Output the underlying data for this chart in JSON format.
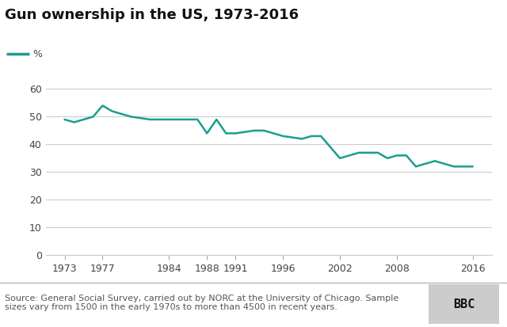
{
  "title": "Gun ownership in the US, 1973-2016",
  "legend_label": "%",
  "line_color": "#1a9e8f",
  "years": [
    1973,
    1974,
    1976,
    1977,
    1978,
    1980,
    1982,
    1984,
    1985,
    1987,
    1988,
    1989,
    1990,
    1991,
    1993,
    1994,
    1996,
    1998,
    1999,
    2000,
    2002,
    2004,
    2006,
    2007,
    2008,
    2009,
    2010,
    2012,
    2014,
    2016
  ],
  "values": [
    49,
    48,
    50,
    54,
    52,
    50,
    49,
    49,
    49,
    49,
    44,
    49,
    44,
    44,
    45,
    45,
    43,
    42,
    43,
    43,
    35,
    37,
    37,
    35,
    36,
    36,
    32,
    34,
    32,
    32
  ],
  "xtick_labels": [
    "1973",
    "1977",
    "1984",
    "1988",
    "1991",
    "1996",
    "2002",
    "2008",
    "2016"
  ],
  "xtick_positions": [
    1973,
    1977,
    1984,
    1988,
    1991,
    1996,
    2002,
    2008,
    2016
  ],
  "ytick_labels": [
    "0",
    "10",
    "20",
    "30",
    "40",
    "50",
    "60"
  ],
  "ytick_positions": [
    0,
    10,
    20,
    30,
    40,
    50,
    60
  ],
  "ylim": [
    0,
    65
  ],
  "xlim": [
    1971,
    2018
  ],
  "background_color": "#ffffff",
  "grid_color": "#cccccc",
  "footer_text": "Source: General Social Survey, carried out by NORC at the University of Chicago. Sample\nsizes vary from 1500 in the early 1970s to more than 4500 in recent years.",
  "bbc_text": "BBC",
  "title_fontsize": 13,
  "axis_fontsize": 9,
  "footer_fontsize": 8,
  "line_width": 1.8
}
